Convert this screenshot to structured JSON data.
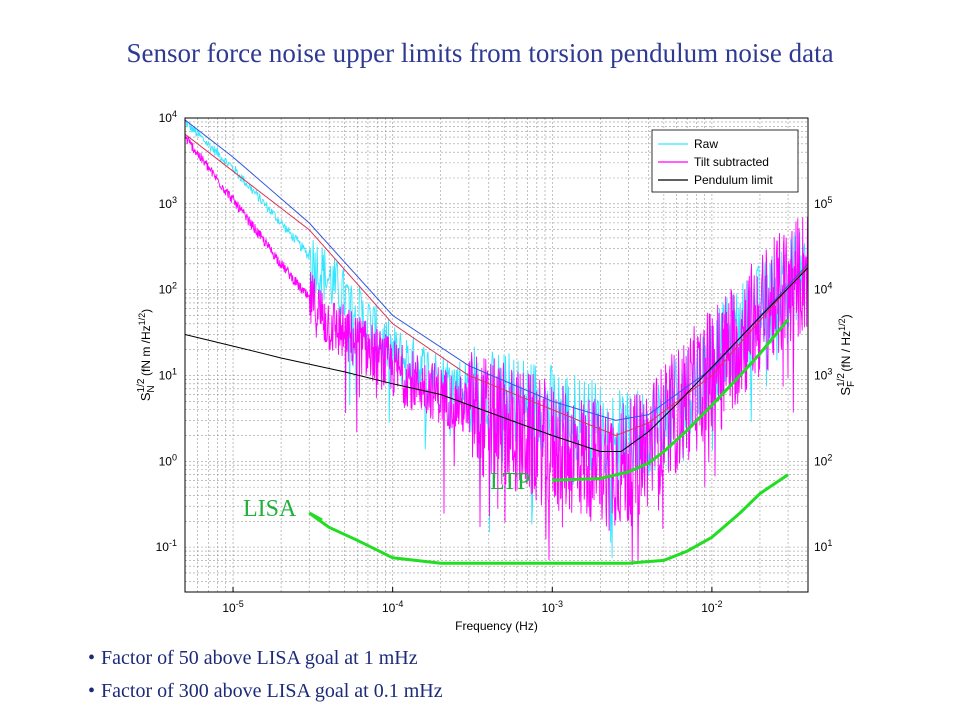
{
  "slide": {
    "title": "Sensor force noise upper limits from torsion pendulum noise data",
    "bullets": [
      "Factor of 50 above LISA goal at 1 mHz",
      "Factor of 300 above LISA goal at 0.1 mHz"
    ]
  },
  "colors": {
    "title": "#2e3a92",
    "raw": "#33e6ff",
    "tilt": "#ff00ff",
    "pendulum": "#000000",
    "lisa_ltp": "#22dd22",
    "fit_blue": "#3355dd",
    "fit_red": "#dd3355",
    "grid": "#999999"
  },
  "chart_data": {
    "type": "line",
    "x_scale": "log",
    "y_scale": "log",
    "xlim": [
      5e-06,
      0.04
    ],
    "ylim": [
      0.03,
      10000
    ],
    "y2lim": [
      3,
      1000000
    ],
    "grid": true,
    "legend": "top-right",
    "xlabel": "Frequency (Hz)",
    "ylabel": {
      "base": "S",
      "sup": "1/2",
      "sub": "N",
      "unit_pre": " (fN m /Hz",
      "unit_sup": "1/2",
      "unit_post": ")"
    },
    "y2label": {
      "base": "S",
      "sup": "1/2",
      "sub": "F",
      "unit_pre": " (fN / Hz",
      "unit_sup": "1/2",
      "unit_post": ")"
    },
    "xticks": [
      {
        "value": 1e-05,
        "base": "10",
        "exp": "-5"
      },
      {
        "value": 0.0001,
        "base": "10",
        "exp": "-4"
      },
      {
        "value": 0.001,
        "base": "10",
        "exp": "-3"
      },
      {
        "value": 0.01,
        "base": "10",
        "exp": "-2"
      }
    ],
    "yticks": [
      {
        "value": 0.1,
        "base": "10",
        "exp": "-1"
      },
      {
        "value": 1,
        "base": "10",
        "exp": "0"
      },
      {
        "value": 10,
        "base": "10",
        "exp": "1"
      },
      {
        "value": 100,
        "base": "10",
        "exp": "2"
      },
      {
        "value": 1000,
        "base": "10",
        "exp": "3"
      },
      {
        "value": 10000,
        "base": "10",
        "exp": "4"
      }
    ],
    "y2ticks": [
      {
        "value": 10,
        "base": "10",
        "exp": "1"
      },
      {
        "value": 100,
        "base": "10",
        "exp": "2"
      },
      {
        "value": 1000,
        "base": "10",
        "exp": "3"
      },
      {
        "value": 10000,
        "base": "10",
        "exp": "4"
      },
      {
        "value": 100000,
        "base": "10",
        "exp": "5"
      }
    ],
    "series": [
      {
        "name": "Raw",
        "color": "#33e6ff",
        "noisy": true,
        "x": [
          5e-06,
          1e-05,
          2e-05,
          4e-05,
          7e-05,
          0.0001,
          0.0002,
          0.0004,
          0.0007,
          0.001,
          0.002,
          0.003,
          0.005,
          0.01,
          0.02,
          0.04
        ],
        "y": [
          9000,
          2600,
          600,
          130,
          40,
          18,
          9,
          6,
          5,
          4,
          2.5,
          1.8,
          3,
          15,
          60,
          200
        ]
      },
      {
        "name": "Tilt subtracted",
        "color": "#ff00ff",
        "noisy": true,
        "x": [
          5e-06,
          1e-05,
          2e-05,
          4e-05,
          7e-05,
          0.0001,
          0.0002,
          0.0004,
          0.0007,
          0.001,
          0.002,
          0.003,
          0.005,
          0.01,
          0.02,
          0.04
        ],
        "y": [
          6000,
          1100,
          200,
          40,
          20,
          12,
          6,
          3,
          2,
          1.5,
          1,
          0.9,
          2.5,
          12,
          50,
          180
        ]
      },
      {
        "name": "Pendulum limit",
        "color": "#000000",
        "noisy": false,
        "x": [
          5e-06,
          1e-05,
          2e-05,
          5e-05,
          0.0001,
          0.0002,
          0.0005,
          0.001,
          0.002,
          0.0027,
          0.004,
          0.006,
          0.01,
          0.02,
          0.04
        ],
        "y": [
          30,
          22,
          16,
          11,
          8,
          6,
          3.2,
          2,
          1.3,
          1.3,
          2.2,
          4.6,
          12.5,
          48,
          180
        ]
      }
    ],
    "fits": [
      {
        "color": "#3355dd",
        "x": [
          5e-06,
          1e-05,
          3e-05,
          0.0001,
          0.0003,
          0.001,
          0.0025,
          0.004,
          0.01,
          0.04
        ],
        "y": [
          9500,
          3500,
          600,
          50,
          13,
          5,
          3,
          3.5,
          12,
          200
        ]
      },
      {
        "color": "#dd3355",
        "x": [
          5e-06,
          1e-05,
          3e-05,
          0.0001,
          0.0003,
          0.001,
          0.0025,
          0.004,
          0.01,
          0.04
        ],
        "y": [
          6500,
          2400,
          500,
          40,
          10,
          4,
          2,
          2.8,
          10,
          190
        ]
      }
    ],
    "annotations": [
      {
        "label": "LISA",
        "color": "#22dd22",
        "x": [
          3e-05,
          4e-05,
          6e-05,
          0.0001,
          0.0002,
          0.001,
          0.003,
          0.005,
          0.007,
          0.01,
          0.015,
          0.02,
          0.03
        ],
        "y": [
          0.25,
          0.17,
          0.12,
          0.075,
          0.065,
          0.065,
          0.065,
          0.07,
          0.09,
          0.13,
          0.25,
          0.42,
          0.7
        ]
      },
      {
        "label": "LTP",
        "color": "#22dd22",
        "x": [
          0.001,
          0.002,
          0.003,
          0.004,
          0.005,
          0.007,
          0.01,
          0.015,
          0.02,
          0.03
        ],
        "y": [
          0.6,
          0.63,
          0.75,
          0.95,
          1.3,
          2.3,
          4.5,
          10,
          18,
          45
        ]
      }
    ]
  }
}
